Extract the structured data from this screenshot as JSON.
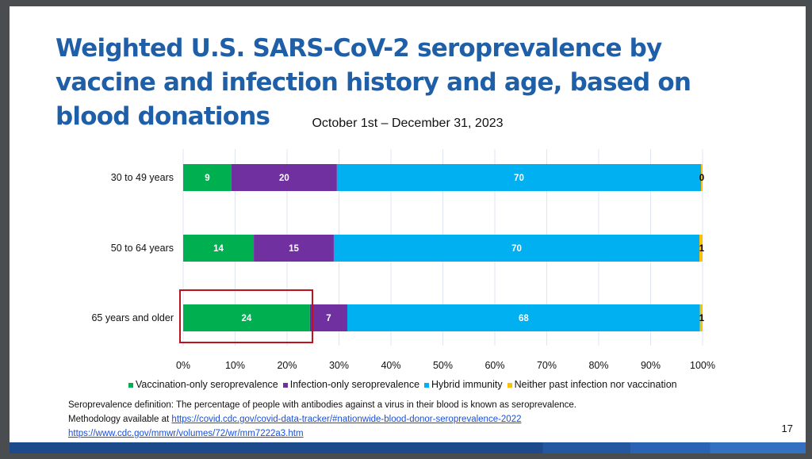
{
  "slide": {
    "title": "Weighted U.S. SARS-CoV-2 seroprevalence by vaccine and infection history and age, based on blood donations",
    "page_number": "17",
    "definition": "Seroprevalence definition: The percentage of people with antibodies against a virus in their blood is known as seroprevalence.",
    "methodology_prefix": "Methodology available at ",
    "link1": "https://covid.cdc.gov/covid-data-tracker/#nationwide-blood-donor-seroprevalence-2022",
    "link2": "https://www.cdc.gov/mmwr/volumes/72/wr/mm7222a3.htm"
  },
  "chart_data": {
    "type": "bar",
    "orientation": "horizontal-stacked-100",
    "title": "October 1st – December 31, 2023",
    "categories": [
      "30 to 49 years",
      "50 to 64 years",
      "65 years and older"
    ],
    "series": [
      {
        "name": "Vaccination-only seroprevalence",
        "color": "#00b050",
        "values": [
          9.3,
          13.6,
          24.4
        ],
        "labels": [
          "9",
          "14",
          "24"
        ]
      },
      {
        "name": "Infection-only seroprevalence",
        "color": "#7030a0",
        "values": [
          20.3,
          15.4,
          7.2
        ],
        "labels": [
          "20",
          "15",
          "7"
        ]
      },
      {
        "name": "Hybrid immunity",
        "color": "#00b0f0",
        "values": [
          70.1,
          70.4,
          67.9
        ],
        "labels": [
          "70",
          "70",
          "68"
        ]
      },
      {
        "name": "Neither past infection nor vaccination",
        "color": "#ffc000",
        "values": [
          0.3,
          0.6,
          0.5
        ],
        "labels": [
          "0",
          "1",
          "1"
        ]
      }
    ],
    "xlim": [
      0,
      100
    ],
    "xticks": [
      "0%",
      "10%",
      "20%",
      "30%",
      "40%",
      "50%",
      "60%",
      "70%",
      "80%",
      "90%",
      "100%"
    ],
    "grid": true,
    "legend": "bottom",
    "highlight": "65 years and older vaccination-only segment"
  }
}
